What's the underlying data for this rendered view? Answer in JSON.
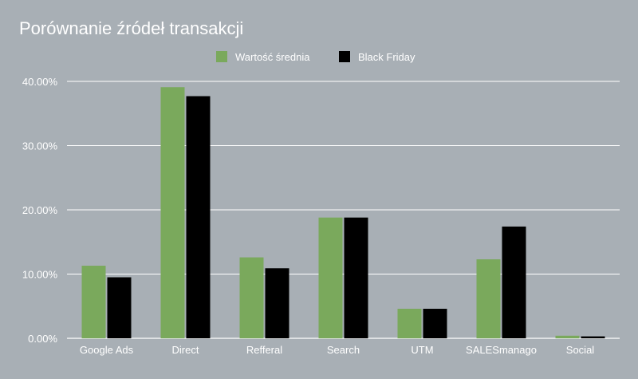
{
  "chart_data": {
    "type": "bar",
    "title": "Porównanie źródeł transakcji",
    "xlabel": "",
    "ylabel": "",
    "categories": [
      "Google Ads",
      "Direct",
      "Refferal",
      "Search",
      "UTM",
      "SALESmanago",
      "Social"
    ],
    "series": [
      {
        "name": "Wartość średnia",
        "color": "#7aa95c",
        "values": [
          11.3,
          39.1,
          12.6,
          18.8,
          4.6,
          12.3,
          0.4
        ]
      },
      {
        "name": "Black Friday",
        "color": "#000000",
        "values": [
          9.5,
          37.7,
          10.9,
          18.8,
          4.6,
          17.4,
          0.3
        ]
      }
    ],
    "ylim": [
      0,
      40
    ],
    "yticks": [
      "0.00%",
      "10.00%",
      "20.00%",
      "30.00%",
      "40.00%"
    ],
    "grid": true,
    "legend_position": "top-center",
    "background": "#a8afb5",
    "text_color": "#ffffff",
    "grid_color": "#ffffff"
  }
}
